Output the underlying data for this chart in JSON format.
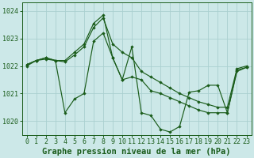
{
  "title": "Graphe pression niveau de la mer (hPa)",
  "background_color": "#cce8e8",
  "plot_bg_color": "#cce8e8",
  "line_color": "#1a5c1a",
  "marker_color": "#1a5c1a",
  "ylim": [
    1019.5,
    1024.3
  ],
  "xlim": [
    -0.5,
    23.5
  ],
  "yticks": [
    1020,
    1021,
    1022,
    1023,
    1024
  ],
  "xticks": [
    0,
    1,
    2,
    3,
    4,
    5,
    6,
    7,
    8,
    9,
    10,
    11,
    12,
    13,
    14,
    15,
    16,
    17,
    18,
    19,
    20,
    21,
    22,
    23
  ],
  "series": [
    [
      1022.0,
      1022.2,
      1022.25,
      1022.2,
      1020.3,
      1020.8,
      1021.0,
      1022.9,
      1023.2,
      1022.3,
      1021.5,
      1021.6,
      1021.5,
      1021.1,
      1021.0,
      1020.85,
      1020.7,
      1020.55,
      1020.4,
      1020.3,
      1020.3,
      1020.3,
      1021.85,
      1021.95
    ],
    [
      1022.05,
      1022.2,
      1022.3,
      1022.2,
      1022.2,
      1022.5,
      1022.8,
      1023.55,
      1023.85,
      1022.3,
      1021.5,
      1022.7,
      1020.3,
      1020.2,
      1019.7,
      1019.6,
      1019.8,
      1021.05,
      1021.1,
      1021.3,
      1021.3,
      1020.3,
      1021.8,
      1021.95
    ],
    [
      1022.05,
      1022.2,
      1022.3,
      1022.2,
      1022.15,
      1022.4,
      1022.7,
      1023.4,
      1023.75,
      1022.8,
      1022.5,
      1022.3,
      1021.8,
      1021.6,
      1021.4,
      1021.2,
      1021.0,
      1020.85,
      1020.7,
      1020.6,
      1020.5,
      1020.5,
      1021.9,
      1022.0
    ]
  ],
  "grid_color": "#aad0d0",
  "title_fontsize": 7.5,
  "tick_fontsize": 6.0
}
